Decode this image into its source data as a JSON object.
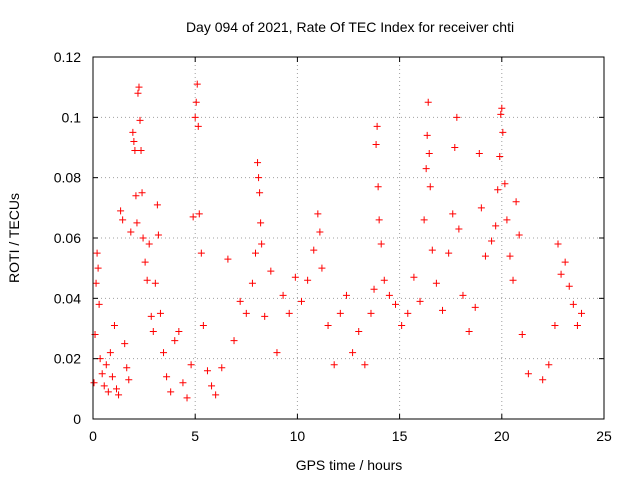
{
  "chart_data": {
    "type": "scatter",
    "title": "Day 094 of 2021, Rate Of TEC Index for receiver chti",
    "xlabel": "GPS time / hours",
    "ylabel": "ROTI / TECUs",
    "xlim": [
      0,
      25
    ],
    "ylim": [
      0,
      0.12
    ],
    "xticks": [
      0,
      5,
      10,
      15,
      20,
      25
    ],
    "xtick_labels": [
      "0",
      "5",
      "10",
      "15",
      "20",
      "25"
    ],
    "yticks": [
      0,
      0.02,
      0.04,
      0.06,
      0.08,
      0.1,
      0.12
    ],
    "ytick_labels": [
      "0",
      "0.02",
      "0.04",
      "0.06",
      "0.08",
      "0.1",
      "0.12"
    ],
    "grid": true,
    "marker": "+",
    "series": [
      {
        "name": "ROTI",
        "color": "#ff0000",
        "points": [
          [
            0.05,
            0.012
          ],
          [
            0.1,
            0.028
          ],
          [
            0.15,
            0.045
          ],
          [
            0.2,
            0.055
          ],
          [
            0.25,
            0.05
          ],
          [
            0.3,
            0.038
          ],
          [
            0.35,
            0.02
          ],
          [
            0.45,
            0.015
          ],
          [
            0.55,
            0.011
          ],
          [
            0.65,
            0.018
          ],
          [
            0.75,
            0.009
          ],
          [
            0.85,
            0.022
          ],
          [
            0.95,
            0.014
          ],
          [
            1.05,
            0.031
          ],
          [
            1.15,
            0.01
          ],
          [
            1.25,
            0.008
          ],
          [
            1.35,
            0.069
          ],
          [
            1.45,
            0.066
          ],
          [
            1.55,
            0.025
          ],
          [
            1.65,
            0.017
          ],
          [
            1.75,
            0.013
          ],
          [
            1.85,
            0.062
          ],
          [
            1.95,
            0.095
          ],
          [
            2.0,
            0.092
          ],
          [
            2.05,
            0.089
          ],
          [
            2.1,
            0.074
          ],
          [
            2.15,
            0.065
          ],
          [
            2.2,
            0.108
          ],
          [
            2.25,
            0.11
          ],
          [
            2.3,
            0.099
          ],
          [
            2.35,
            0.089
          ],
          [
            2.4,
            0.075
          ],
          [
            2.45,
            0.06
          ],
          [
            2.55,
            0.052
          ],
          [
            2.65,
            0.046
          ],
          [
            2.75,
            0.058
          ],
          [
            2.85,
            0.034
          ],
          [
            2.95,
            0.029
          ],
          [
            3.05,
            0.045
          ],
          [
            3.15,
            0.071
          ],
          [
            3.2,
            0.061
          ],
          [
            3.3,
            0.035
          ],
          [
            3.45,
            0.022
          ],
          [
            3.6,
            0.014
          ],
          [
            3.8,
            0.009
          ],
          [
            4.0,
            0.026
          ],
          [
            4.2,
            0.029
          ],
          [
            4.4,
            0.012
          ],
          [
            4.6,
            0.007
          ],
          [
            4.8,
            0.018
          ],
          [
            4.9,
            0.067
          ],
          [
            5.0,
            0.1
          ],
          [
            5.05,
            0.105
          ],
          [
            5.1,
            0.111
          ],
          [
            5.15,
            0.097
          ],
          [
            5.2,
            0.068
          ],
          [
            5.3,
            0.055
          ],
          [
            5.4,
            0.031
          ],
          [
            5.6,
            0.016
          ],
          [
            5.8,
            0.011
          ],
          [
            6.0,
            0.008
          ],
          [
            6.3,
            0.017
          ],
          [
            6.6,
            0.053
          ],
          [
            6.9,
            0.026
          ],
          [
            7.2,
            0.039
          ],
          [
            7.5,
            0.035
          ],
          [
            7.8,
            0.045
          ],
          [
            7.95,
            0.055
          ],
          [
            8.05,
            0.085
          ],
          [
            8.1,
            0.08
          ],
          [
            8.15,
            0.075
          ],
          [
            8.2,
            0.065
          ],
          [
            8.25,
            0.058
          ],
          [
            8.4,
            0.034
          ],
          [
            8.7,
            0.049
          ],
          [
            9.0,
            0.022
          ],
          [
            9.3,
            0.041
          ],
          [
            9.6,
            0.035
          ],
          [
            9.9,
            0.047
          ],
          [
            10.2,
            0.039
          ],
          [
            10.5,
            0.046
          ],
          [
            10.8,
            0.056
          ],
          [
            11.0,
            0.068
          ],
          [
            11.1,
            0.062
          ],
          [
            11.2,
            0.05
          ],
          [
            11.5,
            0.031
          ],
          [
            11.8,
            0.018
          ],
          [
            12.1,
            0.035
          ],
          [
            12.4,
            0.041
          ],
          [
            12.7,
            0.022
          ],
          [
            13.0,
            0.029
          ],
          [
            13.3,
            0.018
          ],
          [
            13.6,
            0.035
          ],
          [
            13.75,
            0.043
          ],
          [
            13.85,
            0.091
          ],
          [
            13.9,
            0.097
          ],
          [
            13.95,
            0.077
          ],
          [
            14.0,
            0.066
          ],
          [
            14.1,
            0.058
          ],
          [
            14.25,
            0.046
          ],
          [
            14.5,
            0.041
          ],
          [
            14.8,
            0.038
          ],
          [
            15.1,
            0.031
          ],
          [
            15.4,
            0.035
          ],
          [
            15.7,
            0.047
          ],
          [
            16.0,
            0.039
          ],
          [
            16.2,
            0.066
          ],
          [
            16.3,
            0.083
          ],
          [
            16.35,
            0.094
          ],
          [
            16.4,
            0.105
          ],
          [
            16.45,
            0.088
          ],
          [
            16.5,
            0.077
          ],
          [
            16.6,
            0.056
          ],
          [
            16.8,
            0.045
          ],
          [
            17.1,
            0.036
          ],
          [
            17.4,
            0.055
          ],
          [
            17.6,
            0.068
          ],
          [
            17.7,
            0.09
          ],
          [
            17.8,
            0.1
          ],
          [
            17.9,
            0.063
          ],
          [
            18.1,
            0.041
          ],
          [
            18.4,
            0.029
          ],
          [
            18.7,
            0.037
          ],
          [
            18.9,
            0.088
          ],
          [
            19.0,
            0.07
          ],
          [
            19.2,
            0.054
          ],
          [
            19.5,
            0.059
          ],
          [
            19.7,
            0.064
          ],
          [
            19.8,
            0.076
          ],
          [
            19.9,
            0.087
          ],
          [
            19.95,
            0.101
          ],
          [
            20.0,
            0.103
          ],
          [
            20.05,
            0.095
          ],
          [
            20.15,
            0.078
          ],
          [
            20.25,
            0.066
          ],
          [
            20.4,
            0.054
          ],
          [
            20.55,
            0.046
          ],
          [
            20.7,
            0.072
          ],
          [
            20.85,
            0.061
          ],
          [
            21.0,
            0.028
          ],
          [
            21.3,
            0.015
          ],
          [
            22.0,
            0.013
          ],
          [
            22.3,
            0.018
          ],
          [
            22.6,
            0.031
          ],
          [
            22.75,
            0.058
          ],
          [
            22.9,
            0.048
          ],
          [
            23.1,
            0.052
          ],
          [
            23.3,
            0.044
          ],
          [
            23.5,
            0.038
          ],
          [
            23.7,
            0.031
          ],
          [
            23.9,
            0.035
          ]
        ]
      }
    ]
  }
}
